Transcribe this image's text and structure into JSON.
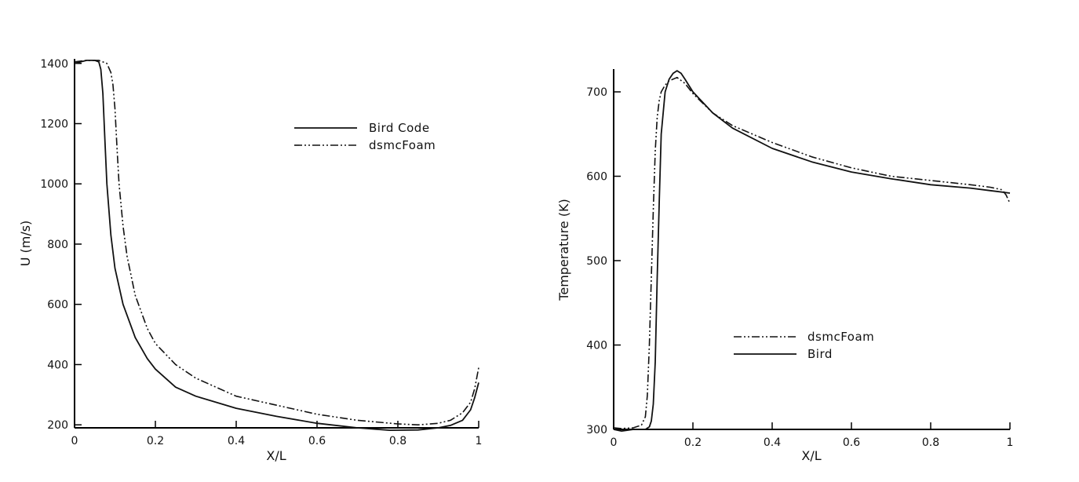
{
  "chart_data": [
    {
      "type": "line",
      "xlabel": "X/L",
      "ylabel": "U (m/s)",
      "xlim": [
        0,
        1
      ],
      "ylim": [
        190,
        1415
      ],
      "xticks": [
        0,
        0.2,
        0.4,
        0.6,
        0.8,
        1
      ],
      "xtick_labels": [
        "0",
        "0.2",
        "0.4",
        "0.6",
        "0.8",
        "1"
      ],
      "yticks": [
        200,
        400,
        600,
        800,
        1000,
        1200,
        1400
      ],
      "ytick_labels": [
        "200",
        "400",
        "600",
        "800",
        "1000",
        "1200",
        "1400"
      ],
      "legend_position": "upper-right",
      "grid": false,
      "series": [
        {
          "name": "Bird Code",
          "style": "solid",
          "x": [
            0,
            0.03,
            0.05,
            0.06,
            0.065,
            0.07,
            0.075,
            0.08,
            0.09,
            0.1,
            0.12,
            0.15,
            0.18,
            0.2,
            0.25,
            0.3,
            0.4,
            0.5,
            0.6,
            0.7,
            0.78,
            0.85,
            0.9,
            0.93,
            0.96,
            0.98,
            0.99,
            1.0
          ],
          "values": [
            1400,
            1410,
            1410,
            1405,
            1380,
            1300,
            1150,
            1000,
            830,
            720,
            600,
            490,
            420,
            385,
            325,
            295,
            255,
            228,
            205,
            190,
            182,
            183,
            190,
            198,
            215,
            250,
            290,
            340
          ]
        },
        {
          "name": "dsmcFoam",
          "style": "dashdotdot",
          "x": [
            0,
            0.03,
            0.06,
            0.08,
            0.09,
            0.095,
            0.1,
            0.105,
            0.11,
            0.12,
            0.13,
            0.15,
            0.18,
            0.2,
            0.25,
            0.3,
            0.4,
            0.5,
            0.6,
            0.7,
            0.8,
            0.85,
            0.9,
            0.93,
            0.96,
            0.98,
            0.99,
            1.0
          ],
          "values": [
            1405,
            1410,
            1410,
            1400,
            1370,
            1330,
            1250,
            1120,
            1000,
            860,
            760,
            630,
            520,
            470,
            400,
            355,
            295,
            265,
            235,
            215,
            203,
            200,
            205,
            215,
            240,
            275,
            320,
            390
          ]
        }
      ]
    },
    {
      "type": "line",
      "xlabel": "X/L",
      "ylabel": "Temperature (K)",
      "xlim": [
        0,
        1
      ],
      "ylim": [
        300,
        727
      ],
      "xticks": [
        0,
        0.2,
        0.4,
        0.6,
        0.8,
        1
      ],
      "xtick_labels": [
        "0",
        "0.2",
        "0.4",
        "0.6",
        "0.8",
        "1"
      ],
      "yticks": [
        300,
        400,
        500,
        600,
        700
      ],
      "ytick_labels": [
        "300",
        "400",
        "500",
        "600",
        "700"
      ],
      "legend_position": "lower-center",
      "grid": false,
      "series": [
        {
          "name": "dsmcFoam",
          "style": "dashdotdot",
          "x": [
            0,
            0.02,
            0.05,
            0.07,
            0.08,
            0.085,
            0.09,
            0.095,
            0.1,
            0.105,
            0.11,
            0.115,
            0.12,
            0.13,
            0.14,
            0.16,
            0.18,
            0.2,
            0.25,
            0.3,
            0.4,
            0.5,
            0.6,
            0.7,
            0.8,
            0.9,
            0.95,
            0.98,
            0.99,
            1.0
          ],
          "values": [
            302,
            301,
            302,
            305,
            315,
            340,
            400,
            480,
            560,
            630,
            670,
            690,
            700,
            708,
            713,
            717,
            710,
            698,
            675,
            660,
            640,
            623,
            610,
            600,
            595,
            590,
            587,
            584,
            578,
            568
          ]
        },
        {
          "name": "Bird",
          "style": "solid",
          "x": [
            0,
            0.02,
            0.05,
            0.08,
            0.09,
            0.095,
            0.1,
            0.105,
            0.11,
            0.115,
            0.12,
            0.13,
            0.14,
            0.15,
            0.16,
            0.17,
            0.18,
            0.2,
            0.25,
            0.3,
            0.4,
            0.5,
            0.6,
            0.7,
            0.8,
            0.9,
            0.95,
            1.0
          ],
          "values": [
            300,
            298,
            300,
            300,
            303,
            310,
            330,
            380,
            480,
            570,
            650,
            700,
            715,
            722,
            725,
            722,
            715,
            700,
            675,
            657,
            633,
            617,
            605,
            597,
            590,
            586,
            583,
            580
          ]
        }
      ]
    }
  ]
}
